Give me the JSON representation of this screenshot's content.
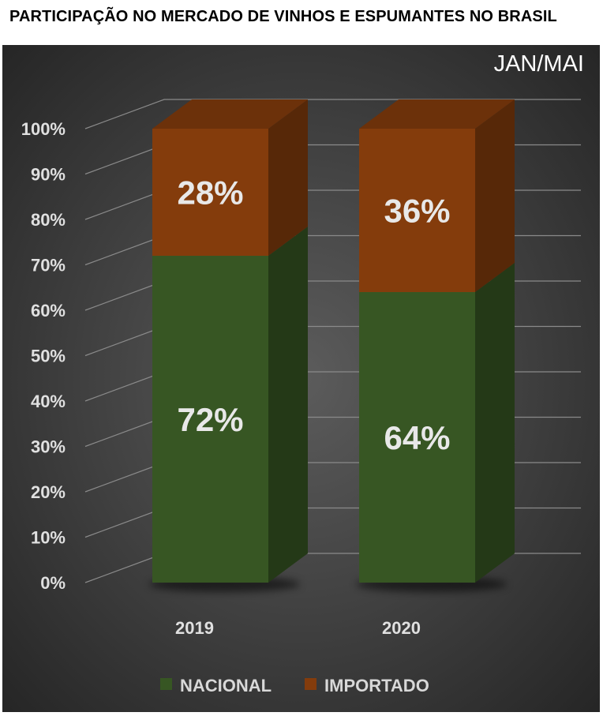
{
  "title": "PARTICIPAÇÃO NO MERCADO DE VINHOS E ESPUMANTES NO BRASIL",
  "colors": {
    "background_center": "#5c5c5c",
    "background_edge": "#262626",
    "nacional": "#375623",
    "importado": "#843c0c",
    "label_text": "#e8e8e8"
  },
  "chart_data": {
    "type": "bar",
    "stacked": true,
    "three_d": true,
    "subtitle": "JAN/MAI",
    "categories": [
      "2019",
      "2020"
    ],
    "series": [
      {
        "name": "NACIONAL",
        "values": [
          72,
          64
        ],
        "labels": [
          "72%",
          "64%"
        ]
      },
      {
        "name": "IMPORTADO",
        "values": [
          28,
          36
        ],
        "labels": [
          "28%",
          "36%"
        ]
      }
    ],
    "ylim": [
      0,
      100
    ],
    "yticks": [
      "0%",
      "10%",
      "20%",
      "30%",
      "40%",
      "50%",
      "60%",
      "70%",
      "80%",
      "90%",
      "100%"
    ],
    "xlabel": "",
    "ylabel": "",
    "grid": true,
    "legend_position": "bottom"
  }
}
